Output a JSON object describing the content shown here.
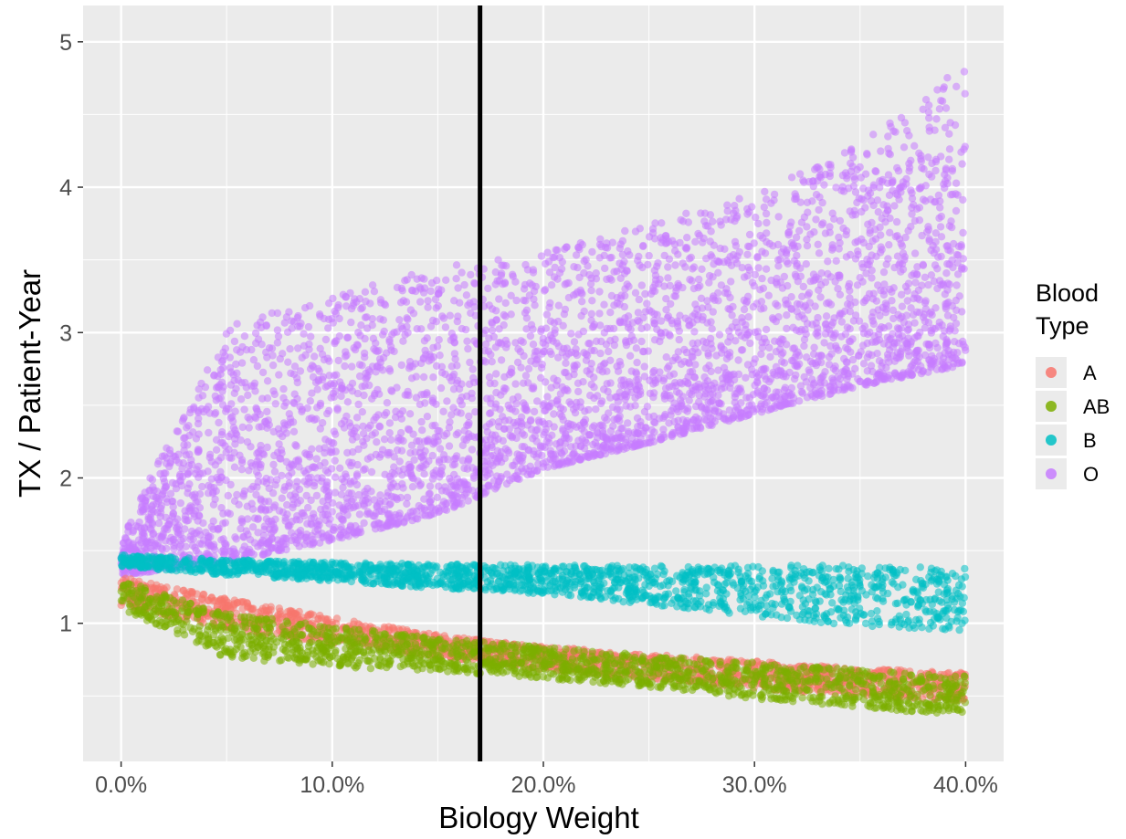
{
  "chart_data": {
    "type": "scatter",
    "title": "",
    "xlabel": "Biology Weight",
    "ylabel": "TX / Patient-Year",
    "xlim": [
      -0.018,
      0.418
    ],
    "ylim": [
      0.05,
      5.25
    ],
    "x_ticks": [
      0.0,
      0.1,
      0.2,
      0.3,
      0.4
    ],
    "x_tick_labels": [
      "0.0%",
      "10.0%",
      "20.0%",
      "30.0%",
      "40.0%"
    ],
    "y_ticks": [
      1,
      2,
      3,
      4,
      5
    ],
    "y_tick_labels": [
      "1",
      "2",
      "3",
      "4",
      "5"
    ],
    "grid": true,
    "vline": {
      "x": 0.17,
      "color": "#000000"
    },
    "legend": {
      "title": [
        "Blood",
        "Type"
      ],
      "placement": "right",
      "entries": [
        "A",
        "AB",
        "B",
        "O"
      ]
    },
    "series": [
      {
        "name": "A",
        "color": "#F8766D",
        "trend": {
          "x": [
            0.0,
            0.05,
            0.1,
            0.15,
            0.2,
            0.25,
            0.3,
            0.35,
            0.4
          ],
          "low": [
            1.12,
            0.96,
            0.86,
            0.77,
            0.68,
            0.62,
            0.55,
            0.5,
            0.46
          ],
          "high": [
            1.32,
            1.17,
            1.04,
            0.92,
            0.84,
            0.79,
            0.74,
            0.69,
            0.66
          ]
        }
      },
      {
        "name": "AB",
        "color": "#7CAE00",
        "trend": {
          "x": [
            0.0,
            0.05,
            0.1,
            0.15,
            0.2,
            0.25,
            0.3,
            0.35,
            0.4
          ],
          "low": [
            1.1,
            0.76,
            0.7,
            0.67,
            0.62,
            0.56,
            0.48,
            0.42,
            0.36
          ],
          "high": [
            1.3,
            1.07,
            0.98,
            0.9,
            0.84,
            0.78,
            0.73,
            0.68,
            0.64
          ]
        }
      },
      {
        "name": "B",
        "color": "#00BFC4",
        "trend": {
          "x": [
            0.0,
            0.05,
            0.1,
            0.15,
            0.2,
            0.25,
            0.3,
            0.35,
            0.4
          ],
          "low": [
            1.39,
            1.33,
            1.29,
            1.24,
            1.2,
            1.13,
            1.05,
            0.98,
            0.95
          ],
          "high": [
            1.47,
            1.44,
            1.42,
            1.41,
            1.4,
            1.4,
            1.4,
            1.4,
            1.38
          ]
        }
      },
      {
        "name": "O",
        "color": "#C77CFF",
        "trend": {
          "x": [
            0.0,
            0.05,
            0.1,
            0.15,
            0.2,
            0.25,
            0.3,
            0.35,
            0.4
          ],
          "low": [
            1.33,
            1.42,
            1.57,
            1.75,
            2.06,
            2.24,
            2.44,
            2.63,
            2.78
          ],
          "high": [
            1.6,
            3.05,
            3.25,
            3.45,
            3.55,
            3.75,
            3.95,
            4.3,
            4.85
          ]
        }
      }
    ]
  }
}
